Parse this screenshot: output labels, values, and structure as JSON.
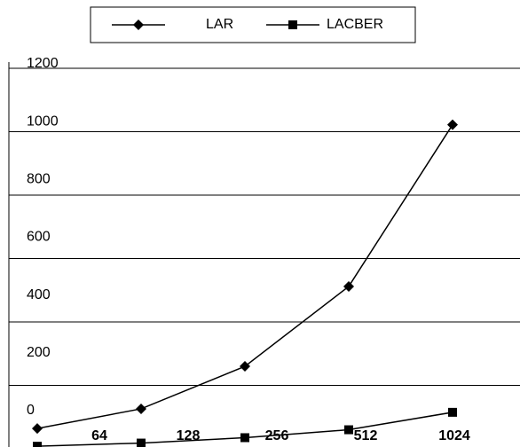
{
  "chart_data": {
    "type": "line",
    "categories": [
      "64",
      "128",
      "256",
      "512",
      "1024"
    ],
    "series": [
      {
        "name": "LAR",
        "color": "#000000",
        "marker": "diamond",
        "values": [
          64,
          126,
          260,
          512,
          1022
        ]
      },
      {
        "name": "LACBER",
        "color": "#000000",
        "marker": "square",
        "values": [
          8,
          18,
          35,
          60,
          115
        ]
      }
    ],
    "ylim": [
      0,
      1200
    ],
    "yticks": [
      0,
      200,
      400,
      600,
      800,
      1000,
      1200
    ],
    "grid": true,
    "legend": "top"
  }
}
